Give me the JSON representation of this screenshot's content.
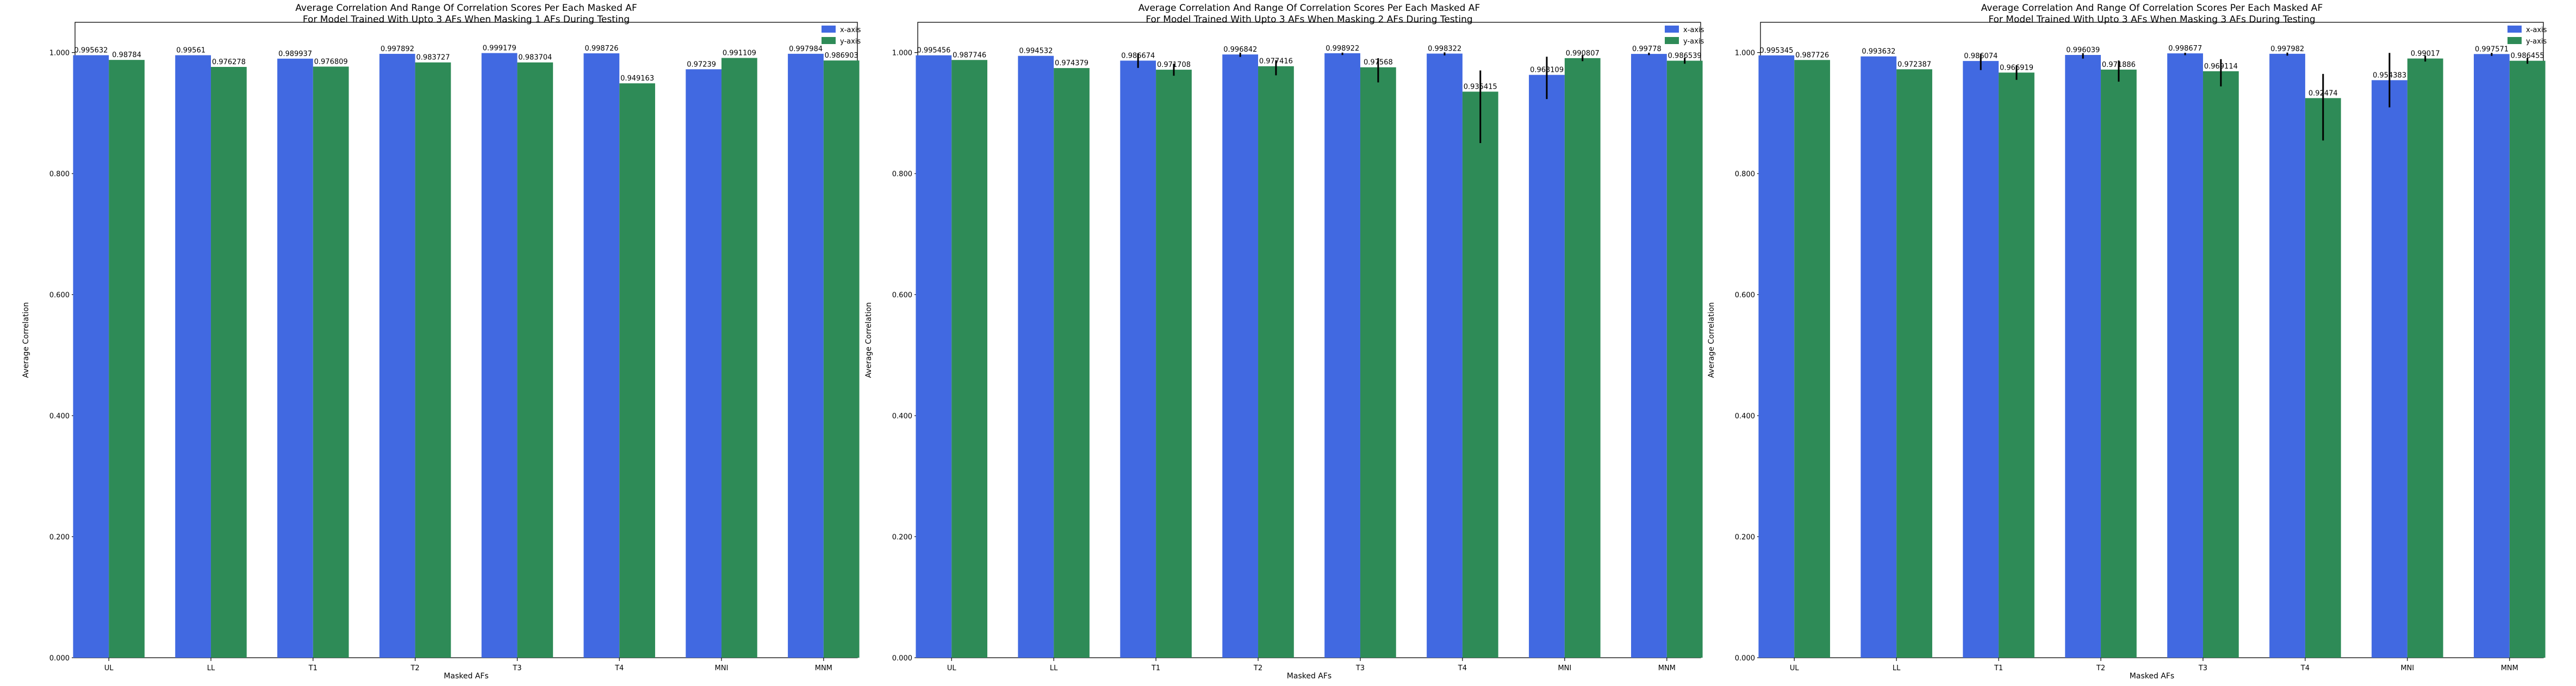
{
  "chart_data": [
    {
      "type": "bar",
      "title": "Average Correlation And Range Of Correlation Scores Per Each Masked AF\nFor Model Trained With Upto 3 AFs When Masking 1 AFs During Testing",
      "xlabel": "Masked AFs",
      "ylabel": "Average Correlation",
      "ylim": [
        0,
        1.05
      ],
      "yticks": [
        "0.000",
        "0.200",
        "0.400",
        "0.600",
        "0.800",
        "1.000"
      ],
      "categories": [
        "UL",
        "LL",
        "T1",
        "T2",
        "T3",
        "T4",
        "MNI",
        "MNM"
      ],
      "legend_position": "top-right",
      "grid": false,
      "series": [
        {
          "name": "x-axis",
          "color": "#4169E1",
          "values": [
            0.995632,
            0.99561,
            0.989937,
            0.997892,
            0.999179,
            0.998726,
            0.97239,
            0.997984
          ],
          "labels": [
            "0.995632",
            "0.99561",
            "0.989937",
            "0.997892",
            "0.999179",
            "0.998726",
            "0.97239",
            "0.997984"
          ],
          "err_low": [
            0,
            0,
            0,
            0,
            0,
            0,
            0,
            0
          ],
          "err_high": [
            0,
            0,
            0,
            0,
            0,
            0,
            0,
            0
          ]
        },
        {
          "name": "y-axis",
          "color": "#2E8B57",
          "values": [
            0.98784,
            0.976278,
            0.976809,
            0.983727,
            0.983704,
            0.949163,
            0.991109,
            0.986903
          ],
          "labels": [
            "0.98784",
            "0.976278",
            "0.976809",
            "0.983727",
            "0.983704",
            "0.949163",
            "0.991109",
            "0.986903"
          ],
          "err_low": [
            0,
            0,
            0,
            0,
            0,
            0,
            0,
            0
          ],
          "err_high": [
            0,
            0,
            0,
            0,
            0,
            0,
            0,
            0
          ]
        }
      ]
    },
    {
      "type": "bar",
      "title": "Average Correlation And Range Of Correlation Scores Per Each Masked AF\nFor Model Trained With Upto 3 AFs When Masking 2 AFs During Testing",
      "xlabel": "Masked AFs",
      "ylabel": "Average Correlation",
      "ylim": [
        0,
        1.05
      ],
      "yticks": [
        "0.000",
        "0.200",
        "0.400",
        "0.600",
        "0.800",
        "1.000"
      ],
      "categories": [
        "UL",
        "LL",
        "T1",
        "T2",
        "T3",
        "T4",
        "MNI",
        "MNM"
      ],
      "legend_position": "top-right",
      "grid": false,
      "series": [
        {
          "name": "x-axis",
          "color": "#4169E1",
          "values": [
            0.995456,
            0.994532,
            0.986674,
            0.996842,
            0.998922,
            0.998322,
            0.963109,
            0.99778
          ],
          "labels": [
            "0.995456",
            "0.994532",
            "0.986674",
            "0.996842",
            "0.998922",
            "0.998322",
            "0.963109",
            "0.99778"
          ],
          "err_low": [
            0,
            0,
            0.012,
            0.004,
            0.003,
            0.003,
            0.04,
            0.002
          ],
          "err_high": [
            0,
            0,
            0.012,
            0.003,
            0.001,
            0.002,
            0.03,
            0.002
          ]
        },
        {
          "name": "y-axis",
          "color": "#2E8B57",
          "values": [
            0.987746,
            0.974379,
            0.971708,
            0.977416,
            0.97568,
            0.935415,
            0.990807,
            0.986539
          ],
          "labels": [
            "0.987746",
            "0.974379",
            "0.971708",
            "0.977416",
            "0.97568",
            "0.935415",
            "0.990807",
            "0.986539"
          ],
          "err_low": [
            0,
            0,
            0.01,
            0.015,
            0.025,
            0.085,
            0.005,
            0.005
          ],
          "err_high": [
            0,
            0,
            0.01,
            0.01,
            0.015,
            0.035,
            0.005,
            0.005
          ]
        }
      ]
    },
    {
      "type": "bar",
      "title": "Average Correlation And Range Of Correlation Scores Per Each Masked AF\nFor Model Trained With Upto 3 AFs When Masking 3 AFs During Testing",
      "xlabel": "Masked AFs",
      "ylabel": "Average Correlation",
      "ylim": [
        0,
        1.05
      ],
      "yticks": [
        "0.000",
        "0.200",
        "0.400",
        "0.600",
        "0.800",
        "1.000"
      ],
      "categories": [
        "UL",
        "LL",
        "T1",
        "T2",
        "T3",
        "T4",
        "MNI",
        "MNM"
      ],
      "legend_position": "top-right",
      "grid": false,
      "series": [
        {
          "name": "x-axis",
          "color": "#4169E1",
          "values": [
            0.995345,
            0.993632,
            0.986074,
            0.996039,
            0.998677,
            0.997982,
            0.954383,
            0.997571
          ],
          "labels": [
            "0.995345",
            "0.993632",
            "0.986074",
            "0.996039",
            "0.998677",
            "0.997982",
            "0.954383",
            "0.997571"
          ],
          "err_low": [
            0,
            0,
            0.015,
            0.006,
            0.003,
            0.003,
            0.045,
            0.003
          ],
          "err_high": [
            0,
            0,
            0.012,
            0.003,
            0.001,
            0.002,
            0.045,
            0.002
          ]
        },
        {
          "name": "y-axis",
          "color": "#2E8B57",
          "values": [
            0.987726,
            0.972387,
            0.966919,
            0.971886,
            0.969114,
            0.92474,
            0.99017,
            0.986455
          ],
          "labels": [
            "0.987726",
            "0.972387",
            "0.966919",
            "0.971886",
            "0.969114",
            "0.92474",
            "0.99017",
            "0.986455"
          ],
          "err_low": [
            0,
            0,
            0.012,
            0.02,
            0.025,
            0.07,
            0.005,
            0.005
          ],
          "err_high": [
            0,
            0,
            0.012,
            0.015,
            0.02,
            0.04,
            0.005,
            0.005
          ]
        }
      ]
    }
  ]
}
